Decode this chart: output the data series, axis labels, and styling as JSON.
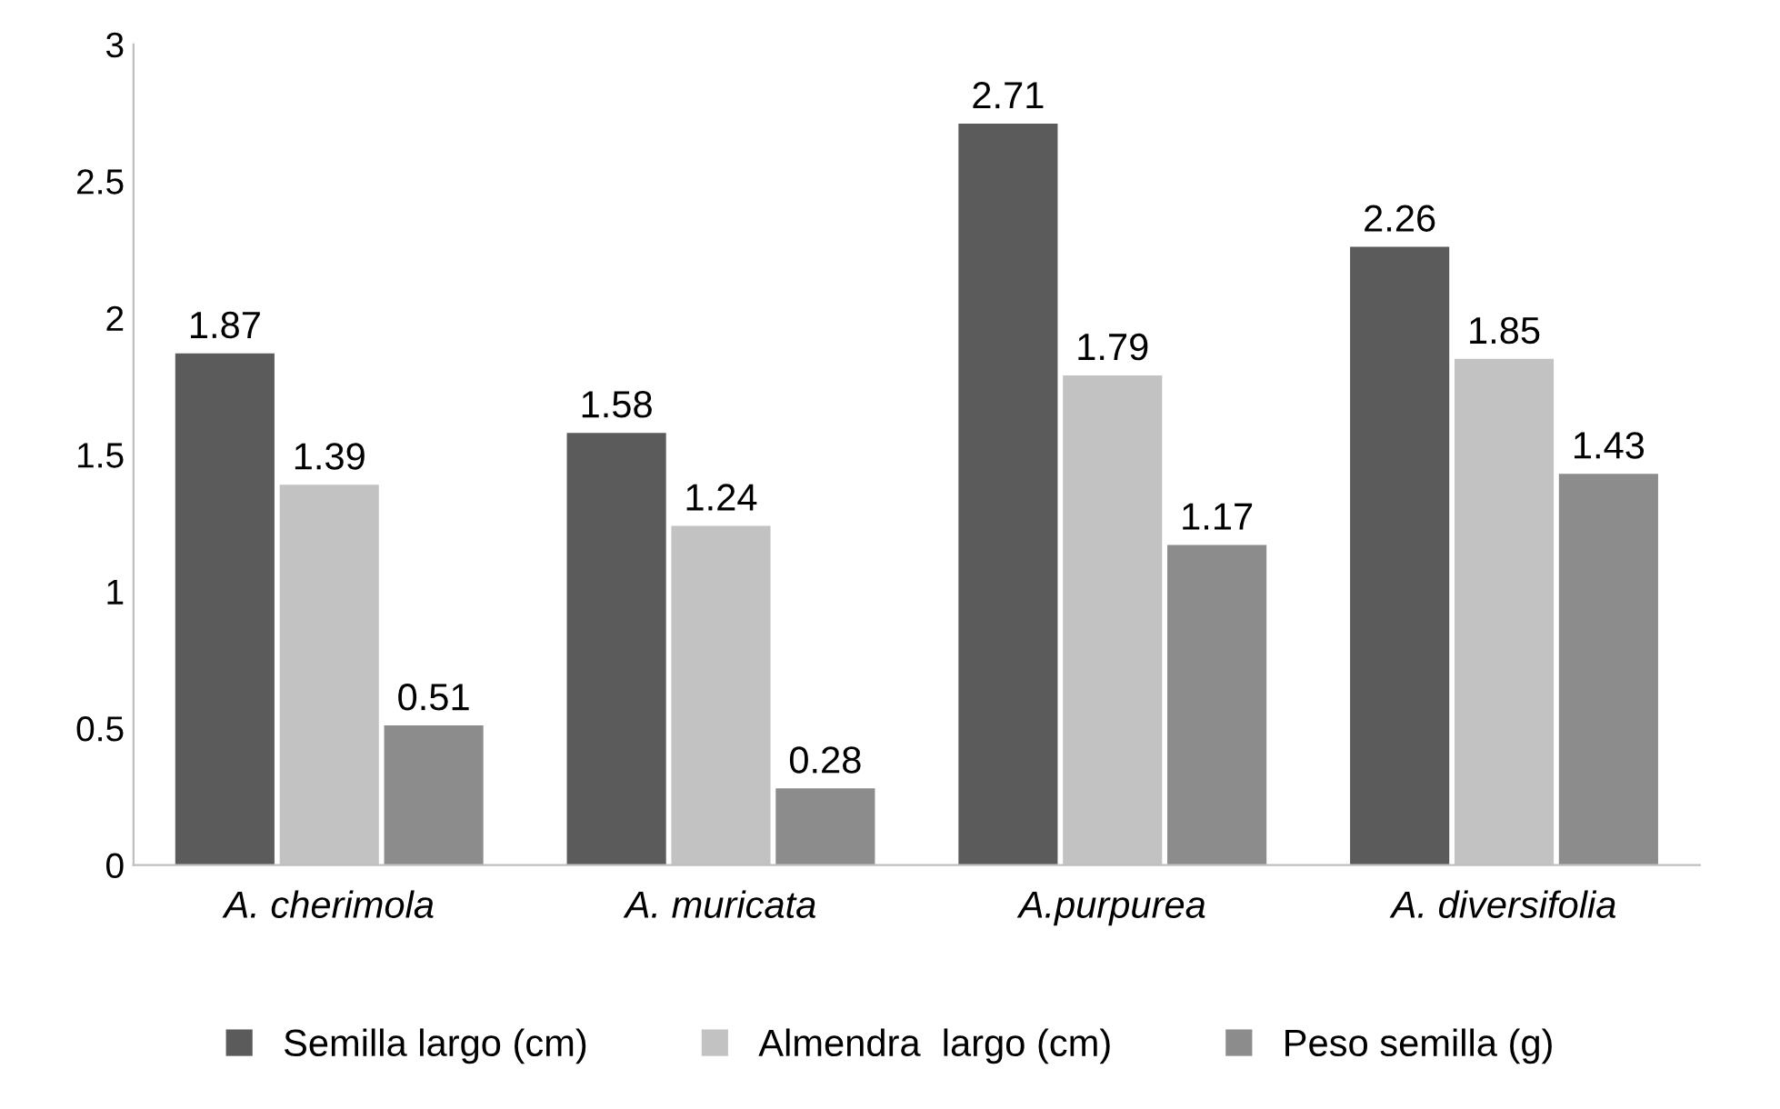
{
  "chart_data": {
    "type": "bar",
    "categories": [
      "A. cherimola",
      "A. muricata",
      "A.purpurea",
      "A. diversifolia"
    ],
    "series": [
      {
        "name": "Semilla largo (cm)",
        "color": "#5b5b5b",
        "values": [
          1.87,
          1.58,
          2.71,
          2.26
        ]
      },
      {
        "name": "Almendra  largo (cm)",
        "color": "#c2c2c2",
        "values": [
          1.39,
          1.24,
          1.79,
          1.85
        ]
      },
      {
        "name": "Peso semilla (g)",
        "color": "#8c8c8c",
        "values": [
          0.51,
          0.28,
          1.17,
          1.43
        ]
      }
    ],
    "ylim": [
      0,
      3
    ],
    "yticks": [
      0,
      0.5,
      1,
      1.5,
      2,
      2.5,
      3
    ],
    "data_labels": true,
    "grid": false,
    "legend": "bottom"
  }
}
